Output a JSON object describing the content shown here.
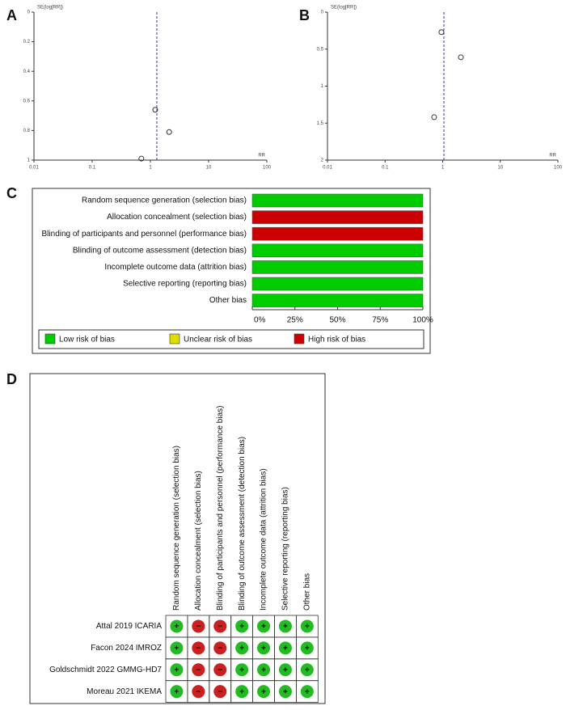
{
  "chart_data": [
    {
      "type": "scatter",
      "panel": "A",
      "ylabel": "SE(log[RR])",
      "xlabel": "RR",
      "log_x": true,
      "y_inverted": true,
      "xlim": [
        0.01,
        100
      ],
      "xticks": [
        0.01,
        0.1,
        1,
        10,
        100
      ],
      "ylim": [
        0,
        1
      ],
      "yticks": [
        0,
        0.2,
        0.4,
        0.6,
        0.8,
        1
      ],
      "reference_line": 1.29,
      "x": [
        1.21,
        2.1,
        0.7
      ],
      "values": [
        0.66,
        0.81,
        0.99
      ],
      "color": "#333333",
      "line_color": "#3333aa"
    },
    {
      "type": "scatter",
      "panel": "B",
      "ylabel": "SE(log[RR])",
      "xlabel": "RR",
      "log_x": true,
      "y_inverted": true,
      "xlim": [
        0.01,
        100
      ],
      "xticks": [
        0.01,
        0.1,
        1,
        10,
        100
      ],
      "ylim": [
        0,
        2
      ],
      "yticks": [
        0,
        0.5,
        1,
        1.5,
        2
      ],
      "reference_line": 1.05,
      "x": [
        0.95,
        2.07,
        0.71
      ],
      "values": [
        0.27,
        0.61,
        1.42
      ],
      "color": "#333333",
      "line_color": "#3333aa"
    },
    {
      "type": "stacked_bar",
      "panel": "C",
      "categories": [
        "Random sequence generation (selection bias)",
        "Allocation concealment (selection bias)",
        "Blinding of participants and personnel (performance bias)",
        "Blinding of outcome assessment (detection bias)",
        "Incomplete outcome data (attrition bias)",
        "Selective reporting (reporting bias)",
        "Other bias"
      ],
      "series": [
        {
          "name": "Low risk of bias",
          "color": "#00cc00",
          "values": [
            100,
            0,
            0,
            100,
            100,
            100,
            100
          ]
        },
        {
          "name": "Unclear risk of bias",
          "color": "#dddd00",
          "values": [
            0,
            0,
            0,
            0,
            0,
            0,
            0
          ]
        },
        {
          "name": "High risk of bias",
          "color": "#cc0000",
          "values": [
            0,
            100,
            100,
            0,
            0,
            0,
            0
          ]
        }
      ],
      "xlim": [
        0,
        100
      ],
      "xticks": [
        {
          "value": 0,
          "label": "0%"
        },
        {
          "value": 25,
          "label": "25%"
        },
        {
          "value": 50,
          "label": "50%"
        },
        {
          "value": 75,
          "label": "75%"
        },
        {
          "value": 100,
          "label": "100%"
        }
      ]
    }
  ],
  "summary": {
    "panel": "D",
    "studies": [
      "Attal 2019 ICARIA",
      "Facon 2024 IMROZ",
      "Goldschmidt 2022 GMMG-HD7",
      "Moreau 2021 IKEMA"
    ],
    "judgments": [
      [
        "+",
        "−",
        "−",
        "+",
        "+",
        "+",
        "+"
      ],
      [
        "+",
        "−",
        "−",
        "+",
        "+",
        "+",
        "+"
      ],
      [
        "+",
        "−",
        "−",
        "+",
        "+",
        "+",
        "+"
      ],
      [
        "+",
        "−",
        "−",
        "+",
        "+",
        "+",
        "+"
      ]
    ],
    "colors": {
      "+": "#22bb22",
      "−": "#cc1f1f"
    }
  }
}
